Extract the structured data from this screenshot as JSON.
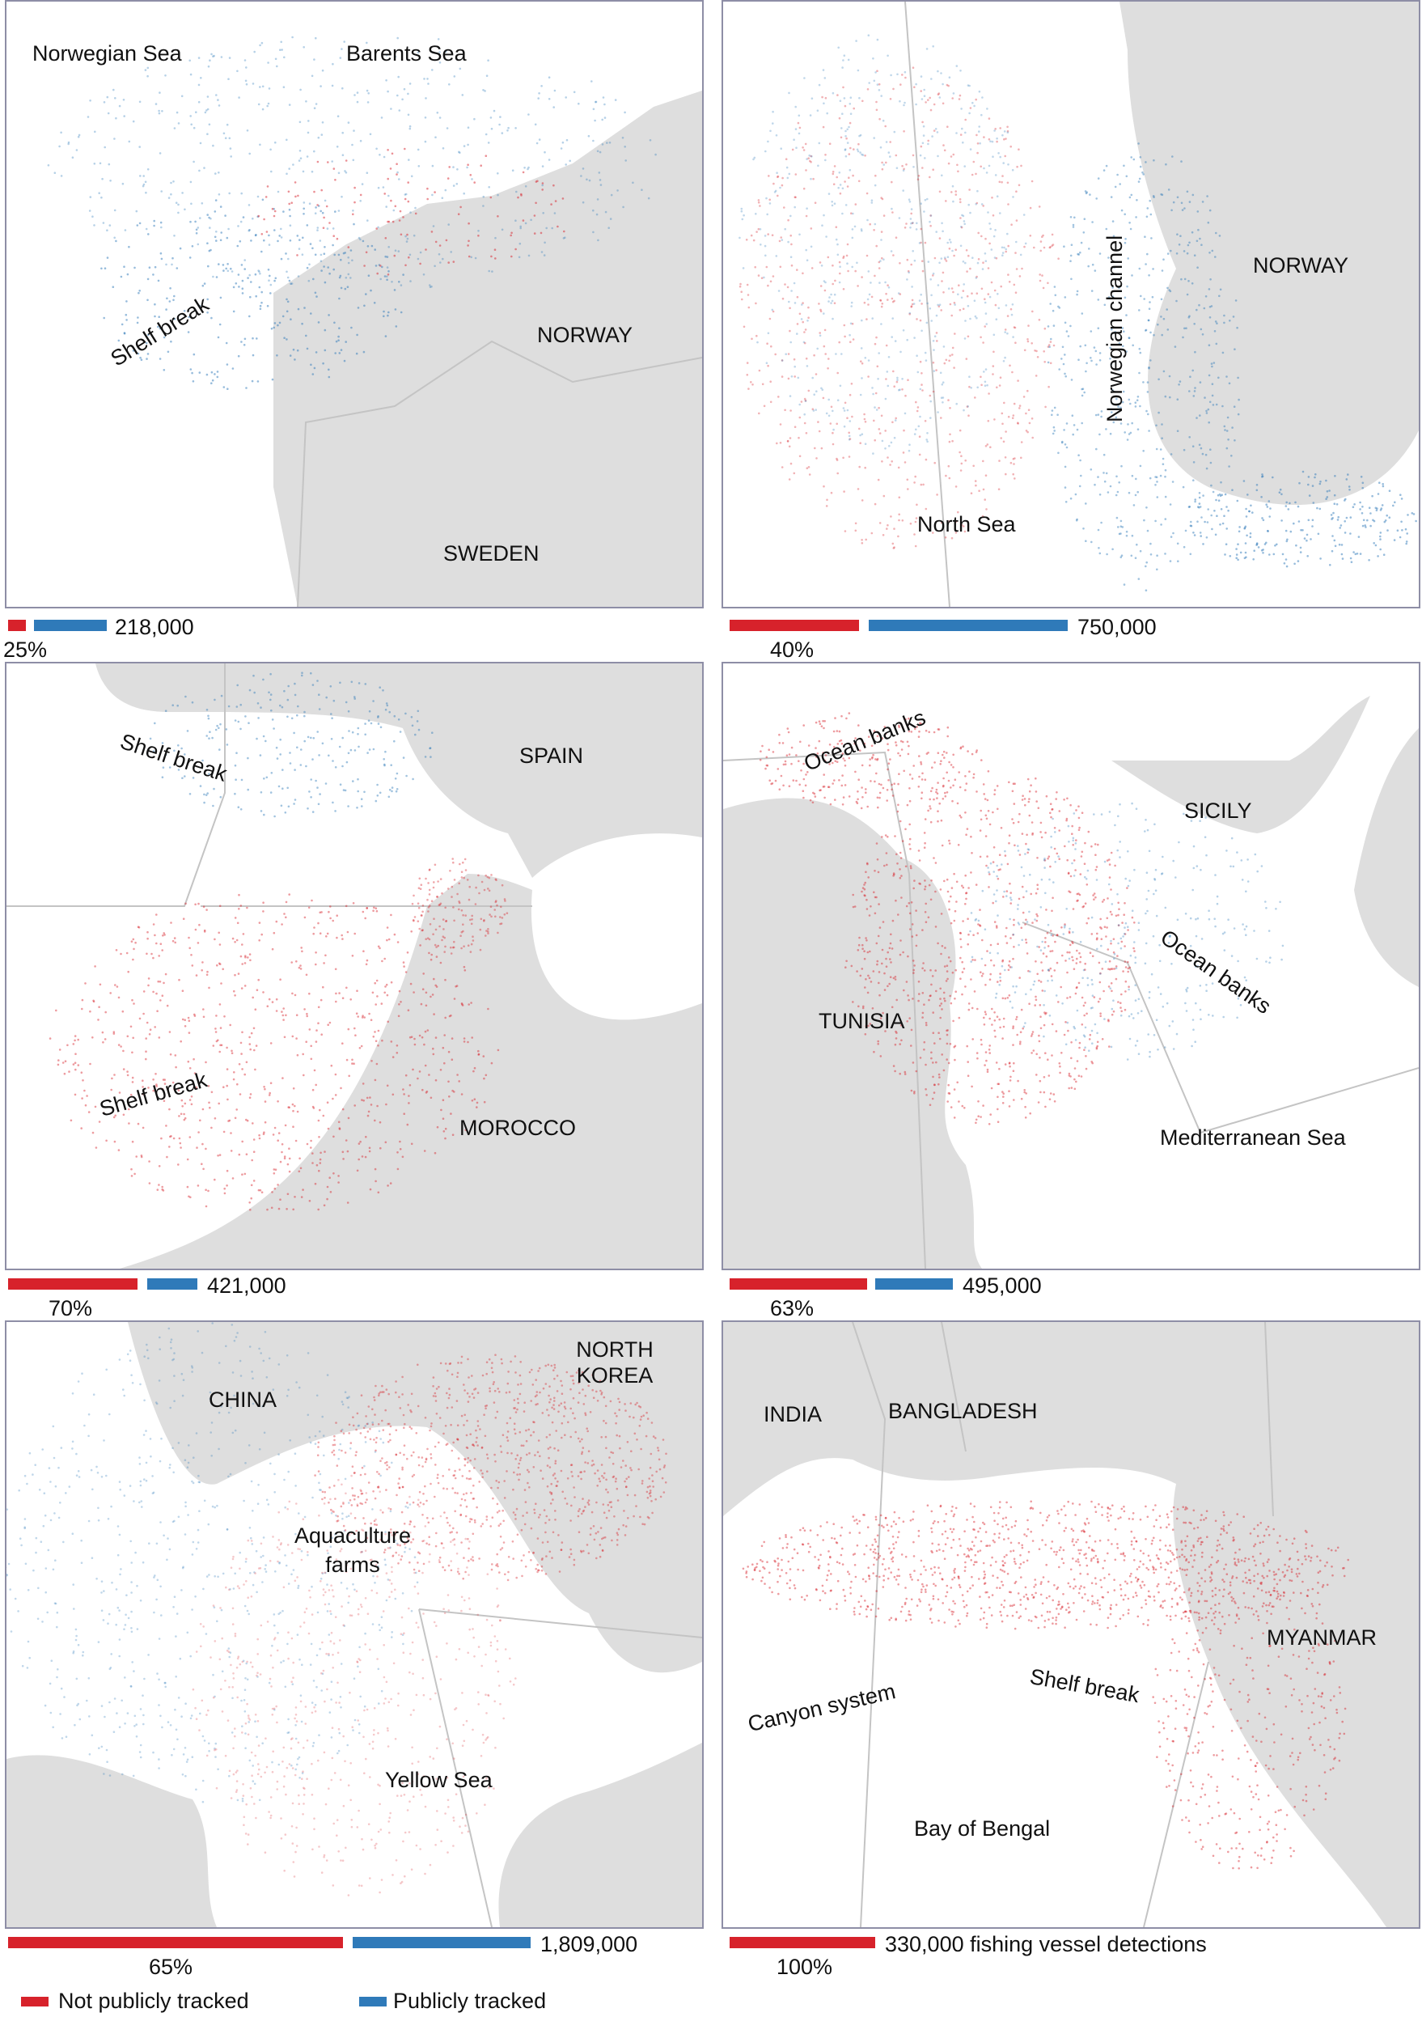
{
  "colors": {
    "not_tracked": "#d7222b",
    "tracked": "#2f7ab9",
    "land": "#dedede",
    "water": "#ffffff",
    "frame": "#8e8ea6"
  },
  "panels": [
    {
      "id": "norway-barents",
      "labels": {
        "norwegian_sea": "Norwegian Sea",
        "barents_sea": "Barents Sea",
        "shelf_break": "Shelf break",
        "norway": "NORWAY",
        "sweden": "SWEDEN"
      },
      "percent_not_tracked": "25%",
      "total_detections": "218,000"
    },
    {
      "id": "north-sea",
      "labels": {
        "norwegian_channel": "Norwegian channel",
        "norway": "NORWAY",
        "north_sea": "North Sea"
      },
      "percent_not_tracked": "40%",
      "total_detections": "750,000"
    },
    {
      "id": "gibraltar",
      "labels": {
        "shelf_break_top": "Shelf break",
        "spain": "SPAIN",
        "shelf_break_bottom": "Shelf break",
        "morocco": "MOROCCO"
      },
      "percent_not_tracked": "70%",
      "total_detections": "421,000"
    },
    {
      "id": "sicily-tunisia",
      "labels": {
        "ocean_banks_top": "Ocean banks",
        "sicily": "SICILY",
        "tunisia": "TUNISIA",
        "ocean_banks_right": "Ocean banks",
        "mediterranean_sea": "Mediterranean Sea"
      },
      "percent_not_tracked": "63%",
      "total_detections": "495,000"
    },
    {
      "id": "yellow-sea",
      "labels": {
        "china": "CHINA",
        "north_korea_1": "NORTH",
        "north_korea_2": "KOREA",
        "aquaculture_1": "Aquaculture",
        "aquaculture_2": "farms",
        "yellow_sea": "Yellow Sea"
      },
      "percent_not_tracked": "65%",
      "total_detections": "1,809,000"
    },
    {
      "id": "bay-of-bengal",
      "labels": {
        "india": "INDIA",
        "bangladesh": "BANGLADESH",
        "myanmar": "MYANMAR",
        "canyon_system": "Canyon system",
        "shelf_break": "Shelf break",
        "bay_of_bengal": "Bay of Bengal"
      },
      "percent_not_tracked": "100%",
      "total_detections": "330,000 fishing vessel detections"
    }
  ],
  "legend": {
    "not_tracked": "Not publicly tracked",
    "tracked": "Publicly tracked"
  }
}
